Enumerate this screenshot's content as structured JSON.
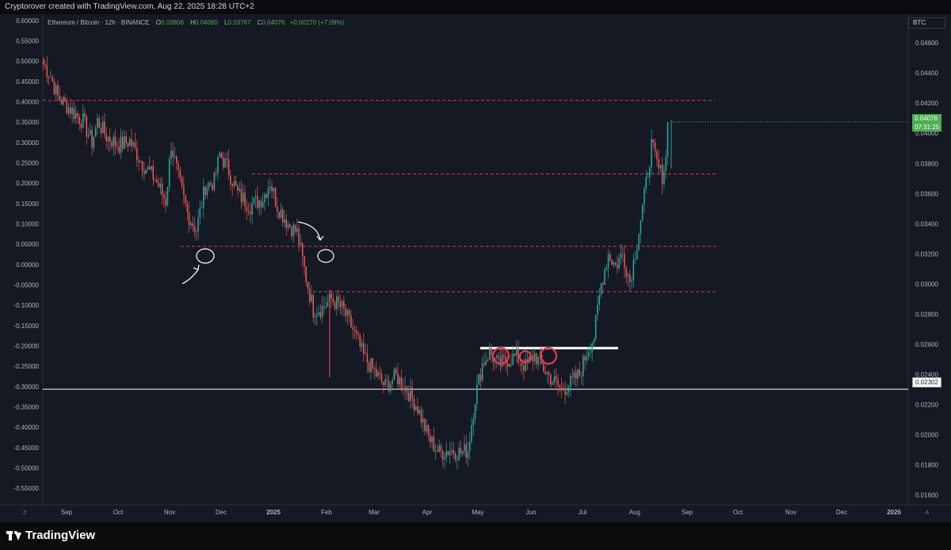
{
  "header": {
    "attribution": "Cryptorover created with TradingView.com, Aug 22, 2025 18:28 UTC+2"
  },
  "symbol_box": "BTC",
  "legend": {
    "title": "Ethereum / Bitcoin · 12h · BINANCE",
    "open_label": "O",
    "open": "0.03806",
    "high_label": "H",
    "high": "0.04090",
    "low_label": "L",
    "low": "0.03767",
    "close_label": "C",
    "close": "0.04076",
    "change": "+0.00270 (+7.09%)"
  },
  "price_tags": {
    "last_price": "0.04076",
    "countdown": "07:31:25",
    "support_price": "0.02302"
  },
  "footer": {
    "brand": "TradingView"
  },
  "corner_labels": {
    "left": "Z",
    "right": "A"
  },
  "colors": {
    "up": "#26a69a",
    "down": "#ef5350",
    "dashed": "#e0457b",
    "support": "#ffffff",
    "badge": "#4caf50"
  },
  "chart_data": {
    "type": "candlestick",
    "title": "Ethereum / Bitcoin · 12h · BINANCE",
    "y_right_axis": {
      "ticks": [
        "0.04600",
        "0.04400",
        "0.04200",
        "0.04000",
        "0.03800",
        "0.03600",
        "0.03400",
        "0.03200",
        "0.03000",
        "0.02800",
        "0.02600",
        "0.02400",
        "0.02200",
        "0.02000",
        "0.01800",
        "0.01600"
      ],
      "range": [
        0.0153,
        0.0479
      ]
    },
    "y_left_axis": {
      "ticks": [
        "0.60000",
        "0.55000",
        "0.50000",
        "0.45000",
        "0.40000",
        "0.35000",
        "0.30000",
        "0.25000",
        "0.20000",
        "0.15000",
        "0.10000",
        "0.05000",
        "0.00000",
        "-0.05000",
        "-0.10000",
        "-0.15000",
        "-0.20000",
        "-0.25000",
        "-0.30000",
        "-0.35000",
        "-0.40000",
        "-0.45000",
        "-0.50000",
        "-0.55000"
      ],
      "range": [
        -0.5926,
        0.6153
      ]
    },
    "x_axis": {
      "ticks": [
        "Sep",
        "Oct",
        "Nov",
        "Dec",
        "2025",
        "Feb",
        "Mar",
        "Apr",
        "May",
        "Jun",
        "Jul",
        "Aug",
        "Sep",
        "Oct",
        "Nov",
        "Dec",
        "2026"
      ]
    },
    "path": [
      [
        0,
        0.0446
      ],
      [
        4,
        0.0438
      ],
      [
        8,
        0.0424
      ],
      [
        15,
        0.0416
      ],
      [
        22,
        0.0408
      ],
      [
        27,
        0.0394
      ],
      [
        30,
        0.0408
      ],
      [
        35,
        0.0398
      ],
      [
        42,
        0.0392
      ],
      [
        48,
        0.0395
      ],
      [
        55,
        0.038
      ],
      [
        62,
        0.037
      ],
      [
        68,
        0.0355
      ],
      [
        71,
        0.0393
      ],
      [
        75,
        0.037
      ],
      [
        80,
        0.0347
      ],
      [
        85,
        0.0336
      ],
      [
        90,
        0.0365
      ],
      [
        95,
        0.0368
      ],
      [
        98,
        0.0386
      ],
      [
        102,
        0.0378
      ],
      [
        108,
        0.036
      ],
      [
        115,
        0.0352
      ],
      [
        122,
        0.0357
      ],
      [
        126,
        0.0368
      ],
      [
        130,
        0.0352
      ],
      [
        136,
        0.034
      ],
      [
        141,
        0.0334
      ],
      [
        146,
        0.0304
      ],
      [
        150,
        0.0283
      ],
      [
        155,
        0.0284
      ],
      [
        160,
        0.029
      ],
      [
        166,
        0.0284
      ],
      [
        172,
        0.027
      ],
      [
        178,
        0.0252
      ],
      [
        185,
        0.024
      ],
      [
        190,
        0.0232
      ],
      [
        196,
        0.0239
      ],
      [
        202,
        0.023
      ],
      [
        208,
        0.0218
      ],
      [
        214,
        0.0198
      ],
      [
        220,
        0.0188
      ],
      [
        226,
        0.019
      ],
      [
        232,
        0.0188
      ],
      [
        236,
        0.019
      ],
      [
        240,
        0.0225
      ],
      [
        244,
        0.0247
      ],
      [
        248,
        0.0255
      ],
      [
        253,
        0.0246
      ],
      [
        258,
        0.025
      ],
      [
        263,
        0.0252
      ],
      [
        268,
        0.0245
      ],
      [
        273,
        0.0253
      ],
      [
        278,
        0.0244
      ],
      [
        283,
        0.0236
      ],
      [
        288,
        0.023
      ],
      [
        293,
        0.0234
      ],
      [
        298,
        0.024
      ],
      [
        302,
        0.0255
      ],
      [
        306,
        0.0265
      ],
      [
        310,
        0.03
      ],
      [
        314,
        0.032
      ],
      [
        318,
        0.0312
      ],
      [
        322,
        0.032
      ],
      [
        326,
        0.0302
      ],
      [
        330,
        0.0328
      ],
      [
        334,
        0.0358
      ],
      [
        338,
        0.0392
      ],
      [
        342,
        0.0376
      ],
      [
        344,
        0.0372
      ],
      [
        346,
        0.0383
      ],
      [
        347,
        0.0408
      ]
    ],
    "path_note": "x = 12h bars since chart start (approx.), y = ETH/BTC price",
    "last_price": 0.04076,
    "levels": [
      {
        "style": "dashed",
        "price": 0.04218
      },
      {
        "style": "dashed",
        "price": 0.0373
      },
      {
        "style": "dashed",
        "price": 0.0325
      },
      {
        "style": "dashed",
        "price": 0.0295
      },
      {
        "style": "solid",
        "price": 0.02302
      },
      {
        "style": "solid-thick",
        "price": 0.02575
      }
    ]
  }
}
